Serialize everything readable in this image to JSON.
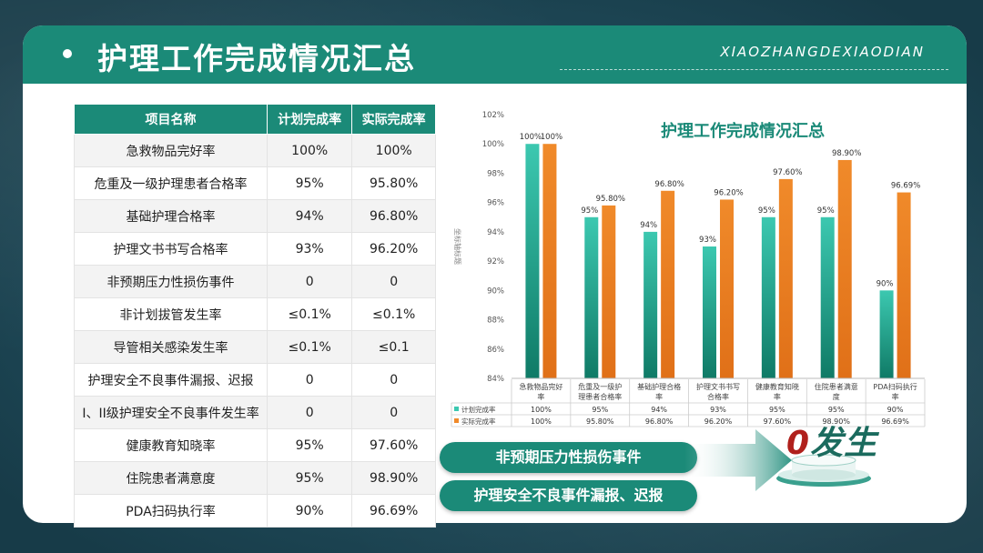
{
  "header": {
    "title": "护理工作完成情况汇总",
    "brand": "XIAOZHANGDEXIAODIAN"
  },
  "table": {
    "headers": [
      "项目名称",
      "计划完成率",
      "实际完成率"
    ],
    "rows": [
      [
        "急救物品完好率",
        "100%",
        "100%"
      ],
      [
        "危重及一级护理患者合格率",
        "95%",
        "95.80%"
      ],
      [
        "基础护理合格率",
        "94%",
        "96.80%"
      ],
      [
        "护理文书书写合格率",
        "93%",
        "96.20%"
      ],
      [
        "非预期压力性损伤事件",
        "0",
        "0"
      ],
      [
        "非计划拔管发生率",
        "≤0.1%",
        "≤0.1%"
      ],
      [
        "导管相关感染发生率",
        "≤0.1%",
        "≤0.1"
      ],
      [
        "护理安全不良事件漏报、迟报",
        "0",
        "0"
      ],
      [
        "I、II级护理安全不良事件发生率",
        "0",
        "0"
      ],
      [
        "健康教育知晓率",
        "95%",
        "97.60%"
      ],
      [
        "住院患者满意度",
        "95%",
        "98.90%"
      ],
      [
        "PDA扫码执行率",
        "90%",
        "96.69%"
      ]
    ]
  },
  "chart_data": {
    "type": "bar",
    "title": "护理工作完成情况汇总",
    "ylabel": "坐标轴标题",
    "ylim": [
      84,
      102
    ],
    "yticks": [
      "84%",
      "86%",
      "88%",
      "90%",
      "92%",
      "94%",
      "96%",
      "98%",
      "100%",
      "102%"
    ],
    "categories": [
      [
        "急救物品完好",
        "率"
      ],
      [
        "危重及一级护",
        "理患者合格率"
      ],
      [
        "基础护理合格",
        "率"
      ],
      [
        "护理文书书写",
        "合格率"
      ],
      [
        "健康教育知晓",
        "率"
      ],
      [
        "住院患者满意",
        "度"
      ],
      [
        "PDA扫码执行",
        "率"
      ]
    ],
    "series": [
      {
        "name": "计划完成率",
        "values": [
          100,
          95,
          94,
          93,
          95,
          95,
          90
        ],
        "labels": [
          "100%",
          "95%",
          "94%",
          "93%",
          "95%",
          "95%",
          "90%"
        ],
        "color": "#3cc8b0"
      },
      {
        "name": "实际完成率",
        "values": [
          100,
          95.8,
          96.8,
          96.2,
          97.6,
          98.9,
          96.69
        ],
        "labels": [
          "100%",
          "95.80%",
          "96.80%",
          "96.20%",
          "97.60%",
          "98.90%",
          "96.69%"
        ],
        "color": "#f08a2a"
      }
    ],
    "grid": false,
    "legend": "data table below chart"
  },
  "callouts": {
    "items": [
      "非预期压力性损伤事件",
      "护理安全不良事件漏报、迟报"
    ],
    "result_zero": "0",
    "result_text": "发生"
  },
  "colors": {
    "primary": "#1b8a78",
    "accent_red": "#b0201c"
  }
}
